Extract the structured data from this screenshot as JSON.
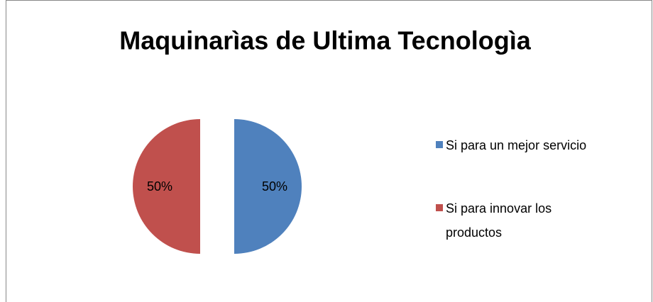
{
  "chart_data": {
    "type": "pie",
    "title": "Maquinarìas de Ultima Tecnologìa",
    "categories": [
      "Si para un mejor servicio",
      "Si para innovar los productos"
    ],
    "values": [
      50,
      50
    ],
    "value_labels": [
      "50%",
      "50%"
    ],
    "colors": [
      "#4f81bd",
      "#c0504d"
    ],
    "legend": "right"
  }
}
